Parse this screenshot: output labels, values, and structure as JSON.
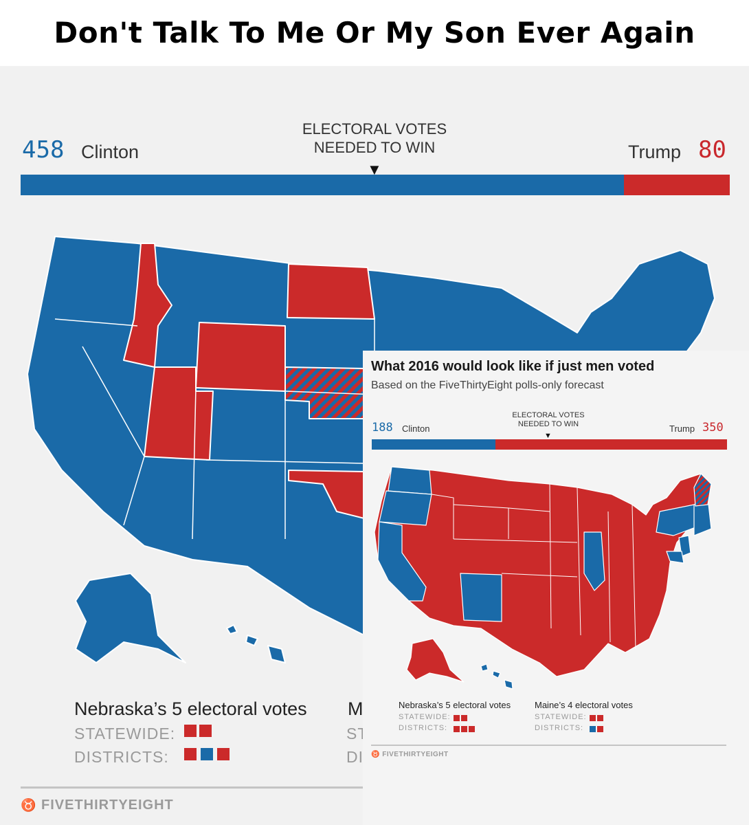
{
  "meme": {
    "caption": "Don't Talk To Me Or My Son Ever Again"
  },
  "colors": {
    "clinton": "#1a6aa8",
    "trump": "#cb2a2a",
    "background": "#f1f1f1",
    "divider": "#c4c4c4"
  },
  "main_graphic": {
    "clinton": {
      "votes": "458",
      "name": "Clinton"
    },
    "trump": {
      "votes": "80",
      "name": "Trump"
    },
    "needed_line1": "ELECTORAL VOTES",
    "needed_line2": "NEEDED TO WIN",
    "needed_marker": "▼",
    "clinton_share": 0.851,
    "nebraska": {
      "title": "Nebraska’s 5 electoral votes",
      "statewide_label": "STATEWIDE:",
      "districts_label": "DISTRICTS:",
      "statewide": [
        "red",
        "red"
      ],
      "districts": [
        "red",
        "blue",
        "red"
      ]
    },
    "maine_partial": {
      "title_fragment": "M",
      "statewide_fragment": "ST",
      "districts_fragment": "DI"
    },
    "brand": "FIVETHIRTYEIGHT",
    "brand_icon": "fivethirtyeight-fox-icon"
  },
  "inset_graphic": {
    "headline": "What 2016 would look like if just men voted",
    "subhead": "Based on the FiveThirtyEight polls-only forecast",
    "clinton": {
      "votes": "188",
      "name": "Clinton"
    },
    "trump": {
      "votes": "350",
      "name": "Trump"
    },
    "needed_line1": "ELECTORAL VOTES",
    "needed_line2": "NEEDED TO WIN",
    "needed_marker": "▼",
    "clinton_share": 0.349,
    "nebraska": {
      "title": "Nebraska’s 5 electoral votes",
      "statewide_label": "STATEWIDE:",
      "districts_label": "DISTRICTS:",
      "statewide": [
        "red",
        "red"
      ],
      "districts": [
        "red",
        "red",
        "red"
      ]
    },
    "maine": {
      "title": "Maine’s 4 electoral votes",
      "statewide_label": "STATEWIDE:",
      "districts_label": "DISTRICTS:",
      "statewide": [
        "red",
        "red"
      ],
      "districts": [
        "blue",
        "red"
      ]
    },
    "brand": "FIVETHIRTYEIGHT",
    "brand_icon": "fivethirtyeight-fox-icon"
  }
}
